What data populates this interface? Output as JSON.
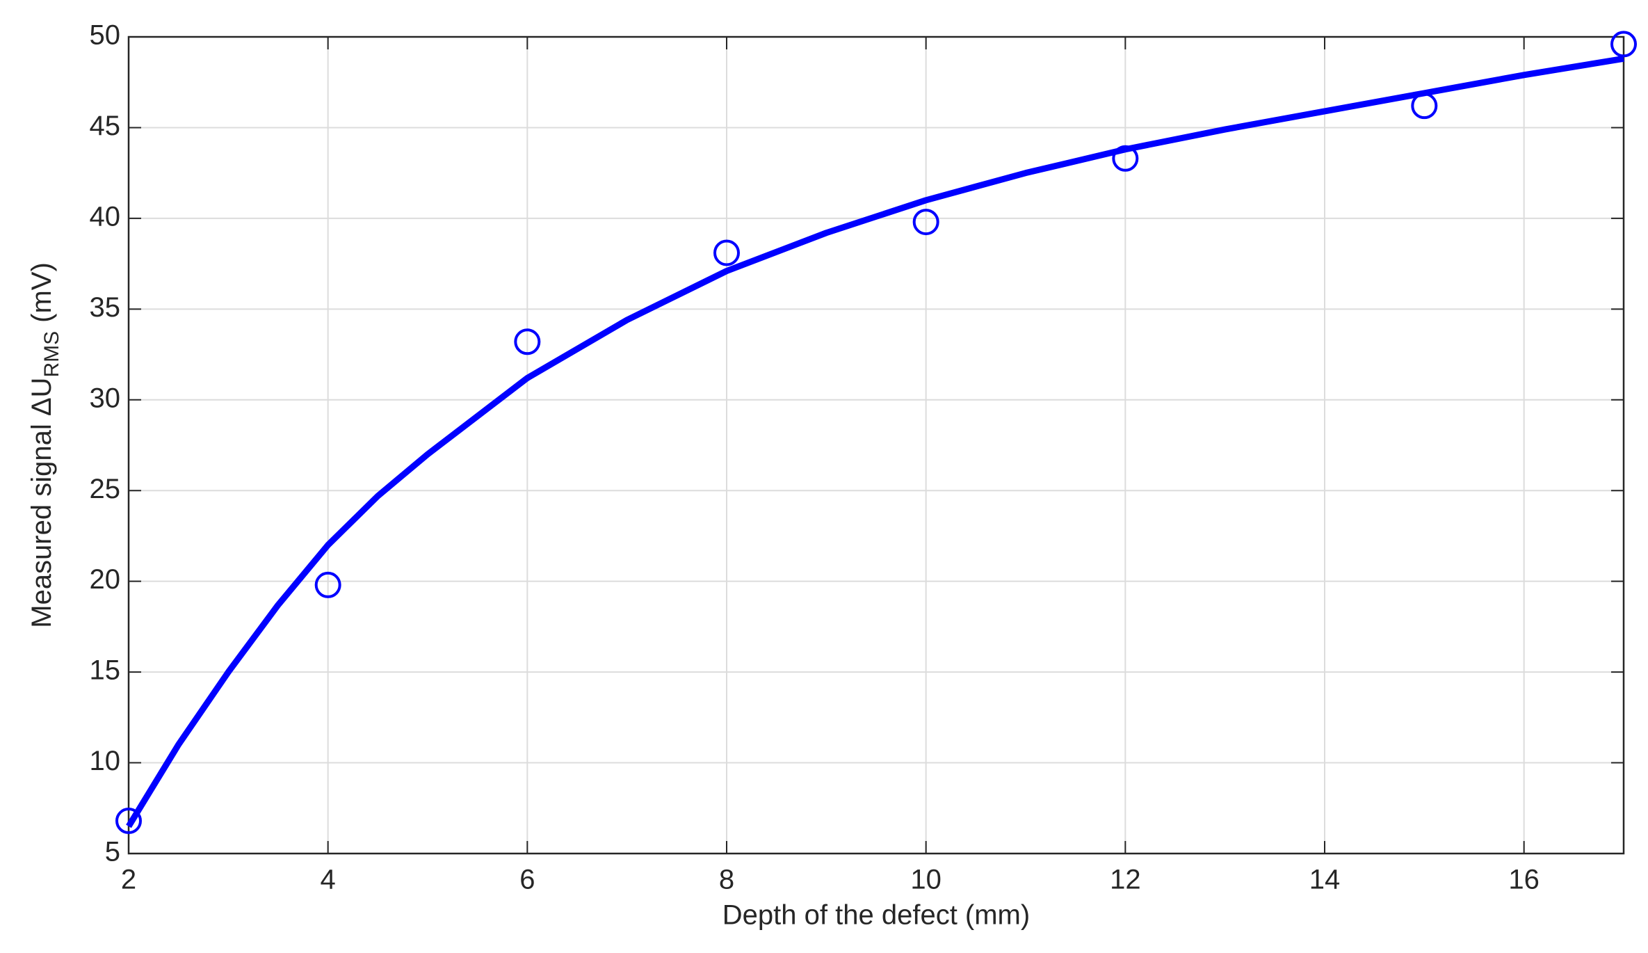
{
  "chart_data": {
    "type": "scatter",
    "xlabel": "Depth of the defect (mm)",
    "ylabel": "Measured signal ΔU",
    "ylabel_subscript": "RMS",
    "ylabel_unit": "(mV)",
    "xlim": [
      2,
      17
    ],
    "xticks": [
      2,
      4,
      6,
      8,
      10,
      12,
      14,
      16
    ],
    "ylim": [
      5,
      50
    ],
    "yticks": [
      5,
      10,
      15,
      20,
      25,
      30,
      35,
      40,
      45,
      50
    ],
    "grid": true,
    "series": [
      {
        "style": "markers",
        "marker": "circle",
        "color": "#0000ff",
        "x": [
          2,
          4,
          6,
          8,
          10,
          12,
          15,
          17
        ],
        "values": [
          6.8,
          19.8,
          33.2,
          38.1,
          39.8,
          43.3,
          46.2,
          49.6
        ]
      },
      {
        "style": "line",
        "color": "#0000ff",
        "x": [
          2,
          2.5,
          3,
          3.5,
          4,
          4.5,
          5,
          6,
          7,
          8,
          9,
          10,
          11,
          12,
          13,
          14,
          15,
          16,
          17
        ],
        "values": [
          6.5,
          11,
          15,
          18.7,
          22,
          24.7,
          27,
          31.2,
          34.4,
          37.1,
          39.2,
          41,
          42.5,
          43.8,
          44.9,
          45.9,
          46.9,
          47.9,
          48.8
        ]
      }
    ]
  }
}
